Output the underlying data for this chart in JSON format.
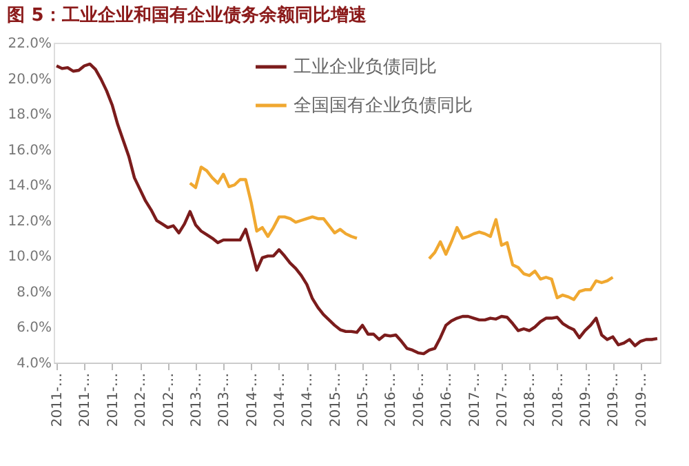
{
  "chart_data": {
    "type": "line",
    "title": "图 5：工业企业和国有企业债务余额同比增速",
    "categories": [
      "2011-…",
      null,
      null,
      null,
      null,
      "2011-…",
      null,
      null,
      null,
      null,
      "2011-…",
      null,
      null,
      null,
      null,
      "2012-…",
      null,
      null,
      null,
      null,
      "2012-…",
      null,
      null,
      null,
      null,
      "2013-…",
      null,
      null,
      null,
      null,
      "2013-…",
      null,
      null,
      null,
      null,
      "2014-…",
      null,
      null,
      null,
      null,
      "2014-…",
      null,
      null,
      null,
      null,
      "2014-…",
      null,
      null,
      null,
      null,
      "2015-…",
      null,
      null,
      null,
      null,
      "2015-…",
      null,
      null,
      null,
      null,
      "2016-…",
      null,
      null,
      null,
      null,
      "2016-…",
      null,
      null,
      null,
      null,
      "2016-…",
      null,
      null,
      null,
      null,
      "2017-…",
      null,
      null,
      null,
      null,
      "2017-…",
      null,
      null,
      null,
      null,
      "2018-…",
      null,
      null,
      null,
      null,
      "2018-…",
      null,
      null,
      null,
      null,
      "2019-…",
      null,
      null,
      null,
      null,
      "2019-…",
      null,
      null,
      null,
      null,
      "2019-…",
      null,
      null,
      null
    ],
    "series": [
      {
        "name": "工业企业负债同比",
        "color": "#7b1c1c",
        "values": [
          20.7,
          20.55,
          20.6,
          20.4,
          20.45,
          20.7,
          20.8,
          20.5,
          19.95,
          19.3,
          18.5,
          17.4,
          16.5,
          15.6,
          14.4,
          13.75,
          13.1,
          12.6,
          12.0,
          11.8,
          11.6,
          11.7,
          11.3,
          11.8,
          12.5,
          11.75,
          11.4,
          11.2,
          11.0,
          10.75,
          10.9,
          10.9,
          10.9,
          10.9,
          11.5,
          10.4,
          9.2,
          9.9,
          10.0,
          10.0,
          10.35,
          10.0,
          9.6,
          9.3,
          8.9,
          8.4,
          7.6,
          7.1,
          6.7,
          6.4,
          6.1,
          5.85,
          5.75,
          5.75,
          5.7,
          6.1,
          5.6,
          5.6,
          5.3,
          5.55,
          5.5,
          5.55,
          5.2,
          4.8,
          4.7,
          4.55,
          4.5,
          4.7,
          4.8,
          5.4,
          6.1,
          6.35,
          6.5,
          6.6,
          6.6,
          6.5,
          6.4,
          6.4,
          6.5,
          6.45,
          6.6,
          6.55,
          6.2,
          5.8,
          5.9,
          5.8,
          6.0,
          6.3,
          6.5,
          6.5,
          6.55,
          6.2,
          6.0,
          5.85,
          5.4,
          5.8,
          6.1,
          6.5,
          5.55,
          5.3,
          5.45,
          5.0,
          5.1,
          5.3,
          4.95,
          5.2,
          5.3,
          5.3,
          5.35
        ]
      },
      {
        "name": "全国国有企业负债同比",
        "color": "#f0a830",
        "values": [
          null,
          null,
          null,
          null,
          null,
          null,
          null,
          null,
          null,
          null,
          null,
          null,
          null,
          null,
          null,
          null,
          null,
          null,
          null,
          null,
          null,
          null,
          null,
          null,
          14.1,
          13.85,
          15.0,
          14.8,
          14.4,
          14.1,
          14.6,
          13.9,
          14.0,
          14.3,
          14.3,
          13.0,
          11.4,
          11.6,
          11.1,
          11.6,
          12.2,
          12.2,
          12.1,
          11.9,
          12.0,
          12.1,
          12.2,
          12.1,
          12.1,
          11.7,
          11.3,
          11.5,
          11.25,
          11.1,
          11.0,
          null,
          null,
          null,
          null,
          null,
          null,
          null,
          null,
          null,
          null,
          null,
          null,
          9.85,
          10.2,
          10.8,
          10.1,
          10.8,
          11.6,
          11.0,
          11.1,
          11.25,
          11.35,
          11.25,
          11.1,
          12.05,
          10.6,
          10.75,
          9.5,
          9.35,
          9.0,
          8.9,
          9.15,
          8.7,
          8.8,
          8.7,
          7.65,
          7.8,
          7.7,
          7.55,
          8.0,
          8.1,
          8.1,
          8.6,
          8.5,
          8.6,
          8.8,
          null,
          null,
          null,
          null,
          null,
          null,
          null,
          null
        ]
      }
    ],
    "ylim": [
      4,
      22
    ],
    "yticks": [
      {
        "value": 4,
        "label": "4.0%"
      },
      {
        "value": 6,
        "label": "6.0%"
      },
      {
        "value": 8,
        "label": "8.0%"
      },
      {
        "value": 10,
        "label": "10.0%"
      },
      {
        "value": 12,
        "label": "12.0%"
      },
      {
        "value": 14,
        "label": "14.0%"
      },
      {
        "value": 16,
        "label": "16.0%"
      },
      {
        "value": 18,
        "label": "18.0%"
      },
      {
        "value": 20,
        "label": "20.0%"
      },
      {
        "value": 22,
        "label": "22.0%"
      }
    ],
    "grid": false,
    "legend": "top",
    "marker": "none",
    "line_style": "solid"
  }
}
